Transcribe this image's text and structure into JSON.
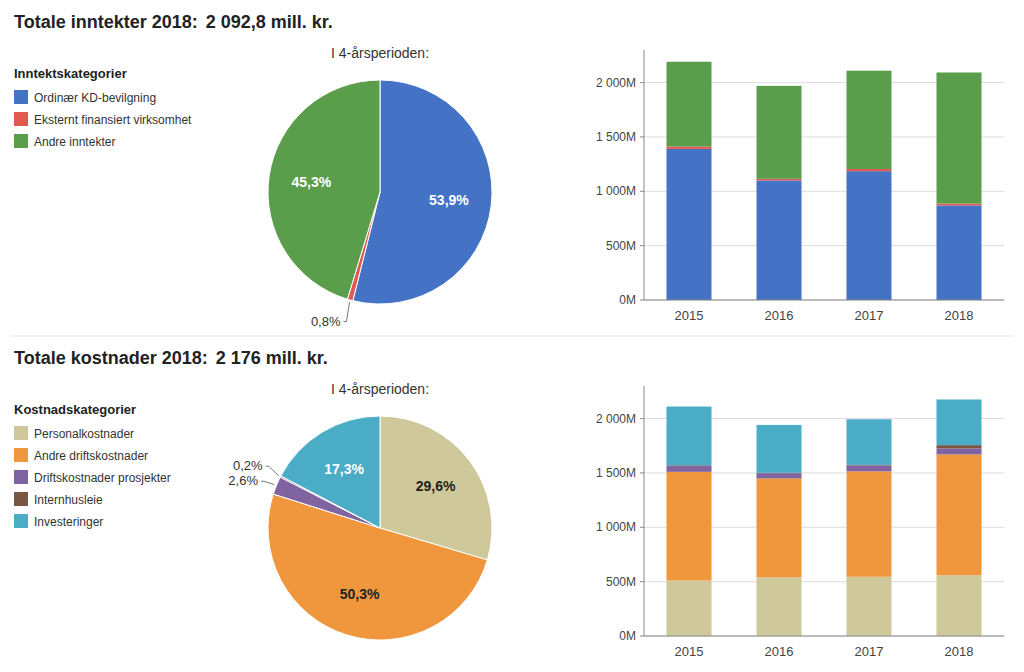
{
  "chart_data": [
    {
      "type": "pie",
      "title": "I 4-årsperioden:",
      "annotations": [
        "Totale inntekter 2018:",
        "2 092,8 mill. kr."
      ],
      "values": [
        53.9,
        0.8,
        45.3
      ],
      "value_labels": [
        "53,9%",
        "0,8%",
        "45,3%"
      ],
      "colors": [
        "#4472c4",
        "#e05a52",
        "#5a9e4b"
      ],
      "data_labels": true
    },
    {
      "type": "bar",
      "stacked": true,
      "grid": true,
      "legend": "left",
      "annotations": [
        "Inntektskategorier"
      ],
      "categories": [
        "2015",
        "2016",
        "2017",
        "2018"
      ],
      "series": [
        {
          "name": "Ordinær KD-bevilgning",
          "color": "#4472c4",
          "values": [
            1390,
            1100,
            1185,
            870
          ]
        },
        {
          "name": "Eksternt finansiert virksomhet",
          "color": "#e05a52",
          "values": [
            22,
            15,
            20,
            17
          ]
        },
        {
          "name": "Andre inntekter",
          "color": "#5a9e4b",
          "values": [
            780,
            855,
            905,
            1206
          ]
        }
      ],
      "ylim": [
        0,
        2300
      ],
      "yticks": [
        {
          "value": 0,
          "label": "0M"
        },
        {
          "value": 500,
          "label": "500M"
        },
        {
          "value": 1000,
          "label": "1 000M"
        },
        {
          "value": 1500,
          "label": "1 500M"
        },
        {
          "value": 2000,
          "label": "2 000M"
        }
      ]
    },
    {
      "type": "pie",
      "title": "I 4-årsperioden:",
      "annotations": [
        "Totale kostnader 2018:",
        "2 176 mill. kr."
      ],
      "values": [
        29.6,
        50.3,
        2.6,
        0.2,
        17.3
      ],
      "value_labels": [
        "29,6%",
        "50,3%",
        "2,6%",
        "0,2%",
        "17,3%"
      ],
      "colors": [
        "#cec89a",
        "#f0963c",
        "#8064a2",
        "#7b5644",
        "#4bacc6"
      ],
      "data_labels": true
    },
    {
      "type": "bar",
      "stacked": true,
      "grid": true,
      "legend": "left",
      "annotations": [
        "Kostnadskategorier"
      ],
      "categories": [
        "2015",
        "2016",
        "2017",
        "2018"
      ],
      "series": [
        {
          "name": "Personalkostnader",
          "color": "#cec89a",
          "values": [
            510,
            540,
            545,
            560
          ]
        },
        {
          "name": "Andre driftskostnader",
          "color": "#f0963c",
          "values": [
            1000,
            910,
            970,
            1110
          ]
        },
        {
          "name": "Driftskostnader prosjekter",
          "color": "#8064a2",
          "values": [
            56,
            48,
            54,
            56
          ]
        },
        {
          "name": "Internhusleie",
          "color": "#7b5644",
          "values": [
            5,
            4,
            5,
            30
          ]
        },
        {
          "name": "Investeringer",
          "color": "#4bacc6",
          "values": [
            540,
            440,
            420,
            420
          ]
        }
      ],
      "ylim": [
        0,
        2300
      ],
      "yticks": [
        {
          "value": 0,
          "label": "0M"
        },
        {
          "value": 500,
          "label": "500M"
        },
        {
          "value": 1000,
          "label": "1 000M"
        },
        {
          "value": 1500,
          "label": "1 500M"
        },
        {
          "value": 2000,
          "label": "2 000M"
        }
      ]
    }
  ]
}
